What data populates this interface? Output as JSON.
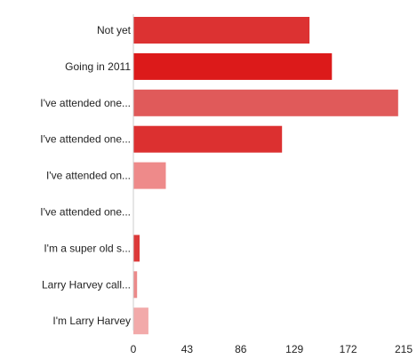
{
  "chart_data": {
    "type": "bar",
    "orientation": "horizontal",
    "categories": [
      "Not yet",
      "Going in 2011",
      "I've attended one...",
      "I've attended one...",
      "I've attended on...",
      "I've attended one...",
      "I'm a super old s...",
      "Larry Harvey call...",
      "I'm Larry Harvey"
    ],
    "values": [
      141,
      159,
      212,
      119,
      26,
      0,
      5,
      3,
      12
    ],
    "bar_colors": [
      "#dc3232",
      "#dc1a1a",
      "#e05a5a",
      "#dc3030",
      "#ee8a8a",
      "#f2a0a0",
      "#dc3a3a",
      "#ec8a8a",
      "#f2aaaa"
    ],
    "xlim": [
      0,
      215
    ],
    "xticks": [
      "0",
      "43",
      "86",
      "129",
      "172",
      "215"
    ],
    "title": "",
    "xlabel": "",
    "ylabel": "",
    "grid": false,
    "legend": "none"
  }
}
